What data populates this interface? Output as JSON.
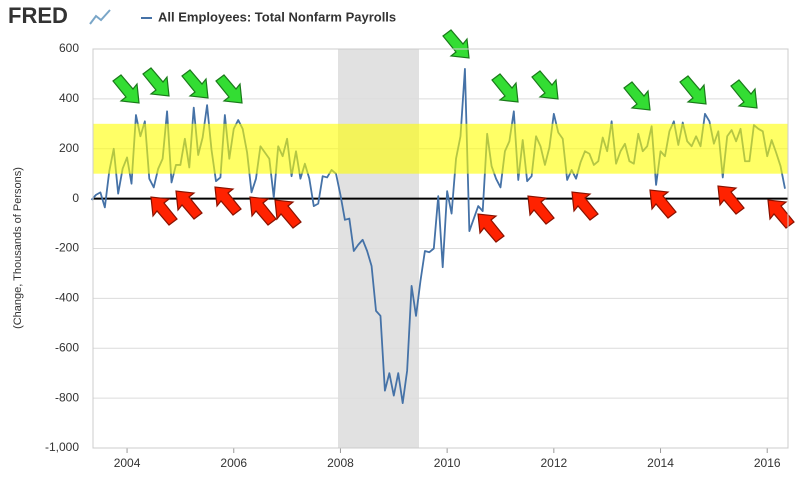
{
  "chart_data": {
    "type": "line",
    "brand": "FRED",
    "ylabel": "(Change, Thousands of Persons)",
    "categories": [
      null,
      null,
      null,
      null,
      null,
      null,
      null,
      null,
      "2004",
      null,
      null,
      null,
      null,
      null,
      null,
      null,
      null,
      null,
      null,
      null,
      null,
      null,
      null,
      null,
      null,
      null,
      null,
      null,
      null,
      null,
      null,
      null,
      "2006",
      null,
      null,
      null,
      null,
      null,
      null,
      null,
      null,
      null,
      null,
      null,
      null,
      null,
      null,
      null,
      null,
      null,
      null,
      null,
      null,
      null,
      null,
      null,
      "2008",
      null,
      null,
      null,
      null,
      null,
      null,
      null,
      null,
      null,
      null,
      null,
      null,
      null,
      null,
      null,
      null,
      null,
      null,
      null,
      null,
      null,
      null,
      null,
      "2010",
      null,
      null,
      null,
      null,
      null,
      null,
      null,
      null,
      null,
      null,
      null,
      null,
      null,
      null,
      null,
      null,
      null,
      null,
      null,
      null,
      null,
      null,
      null,
      "2012",
      null,
      null,
      null,
      null,
      null,
      null,
      null,
      null,
      null,
      null,
      null,
      null,
      null,
      null,
      null,
      null,
      null,
      null,
      null,
      null,
      null,
      null,
      null,
      "2014",
      null,
      null,
      null,
      null,
      null,
      null,
      null,
      null,
      null,
      null,
      null,
      null,
      null,
      null,
      null,
      null,
      null,
      null,
      null,
      null,
      null,
      null,
      null,
      "2016",
      null,
      null,
      null,
      null
    ],
    "series": [
      {
        "name": "All Employees: Total Nonfarm Payrolls",
        "color": "#4572a7",
        "values": [
          -5,
          15,
          25,
          -35,
          110,
          200,
          20,
          120,
          165,
          60,
          335,
          250,
          310,
          80,
          45,
          120,
          160,
          350,
          65,
          135,
          135,
          240,
          125,
          365,
          175,
          245,
          375,
          195,
          70,
          85,
          335,
          160,
          280,
          315,
          280,
          185,
          25,
          80,
          210,
          185,
          160,
          5,
          210,
          170,
          240,
          90,
          190,
          80,
          140,
          80,
          -30,
          -20,
          90,
          85,
          115,
          100,
          15,
          -85,
          -80,
          -210,
          -185,
          -165,
          -210,
          -270,
          -450,
          -470,
          -770,
          -700,
          -790,
          -700,
          -820,
          -690,
          -350,
          -470,
          -330,
          -210,
          -215,
          -200,
          10,
          -275,
          30,
          -60,
          160,
          250,
          520,
          -130,
          -80,
          -30,
          -50,
          260,
          130,
          80,
          45,
          190,
          230,
          350,
          75,
          235,
          70,
          90,
          250,
          210,
          135,
          205,
          340,
          265,
          240,
          75,
          115,
          80,
          145,
          190,
          180,
          135,
          150,
          245,
          190,
          310,
          140,
          190,
          220,
          150,
          140,
          260,
          190,
          210,
          290,
          55,
          190,
          170,
          270,
          310,
          215,
          305,
          230,
          210,
          250,
          210,
          340,
          310,
          220,
          270,
          85,
          250,
          275,
          230,
          280,
          150,
          150,
          295,
          280,
          270,
          170,
          235,
          185,
          130,
          40
        ]
      }
    ],
    "ylim": [
      -1000,
      600
    ],
    "yticks": [
      {
        "value": -1000,
        "label": "-1,000"
      },
      -800,
      -600,
      -400,
      -200,
      0,
      200,
      400,
      600
    ],
    "band": [
      100,
      300
    ],
    "band_color": "#ffff00",
    "grid": true
  }
}
